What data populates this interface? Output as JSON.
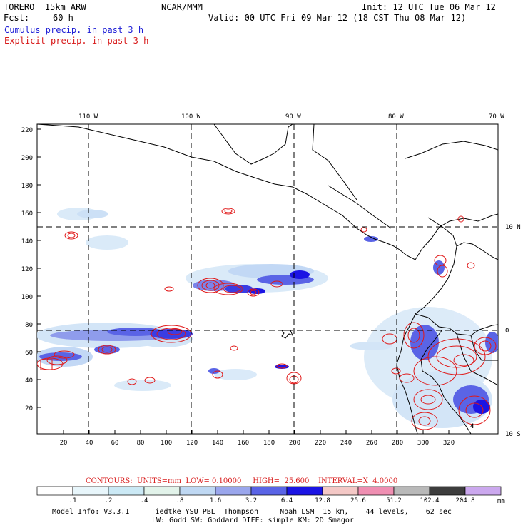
{
  "header": {
    "model_name": "TORERO  15km ARW",
    "center": "NCAR/MMM",
    "init": "Init: 12 UTC Tue 06 Mar 12",
    "fcst_label": "Fcst:",
    "fcst_value": "60 h",
    "valid": "Valid: 00 UTC Fri 09 Mar 12 (18 CST Thu 08 Mar 12)",
    "legend_cumulus": "Cumulus precip. in past 3 h",
    "legend_explicit": "Explicit precip. in past 3 h"
  },
  "map": {
    "lon_labels": [
      "110 W",
      "100 W",
      "90 W",
      "80 W",
      "70 W"
    ],
    "lat_labels": [
      "10 N",
      "0",
      "10 S"
    ],
    "y_ticks": [
      "220",
      "200",
      "180",
      "160",
      "140",
      "120",
      "100",
      "80",
      "60",
      "40",
      "20"
    ],
    "x_ticks": [
      "20",
      "40",
      "60",
      "80",
      "100",
      "120",
      "140",
      "160",
      "180",
      "200",
      "220",
      "240",
      "260",
      "280",
      "300",
      "320"
    ],
    "contour_labels": [
      "4",
      "4"
    ]
  },
  "contours_info": {
    "text": "CONTOURS:  UNITS=mm  LOW= 0.10000     HIGH=  25.600    INTERVAL=X  4.0000"
  },
  "colorbar": {
    "labels": [
      ".1",
      ".2",
      ".4",
      ".8",
      "1.6",
      "3.2",
      "6.4",
      "12.8",
      "25.6",
      "51.2",
      "102.4",
      "204.8"
    ],
    "unit": "mm",
    "colors": [
      "#ffffff",
      "#e8f6fb",
      "#cbe9f5",
      "#e2f3ea",
      "#bfd8f3",
      "#9aa6ec",
      "#5a64e6",
      "#1b14e4",
      "#f4c8c6",
      "#ef8fb2",
      "#b9b9b9",
      "#3d3d3d",
      "#cba8ee"
    ]
  },
  "footer": {
    "line1": "Model Info: V3.3.1     Tiedtke YSU PBL  Thompson     Noah LSM  15 km,    44 levels,    62 sec",
    "line2": "LW: Godd SW: Goddard DIFF: simple KM: 2D Smagor"
  }
}
